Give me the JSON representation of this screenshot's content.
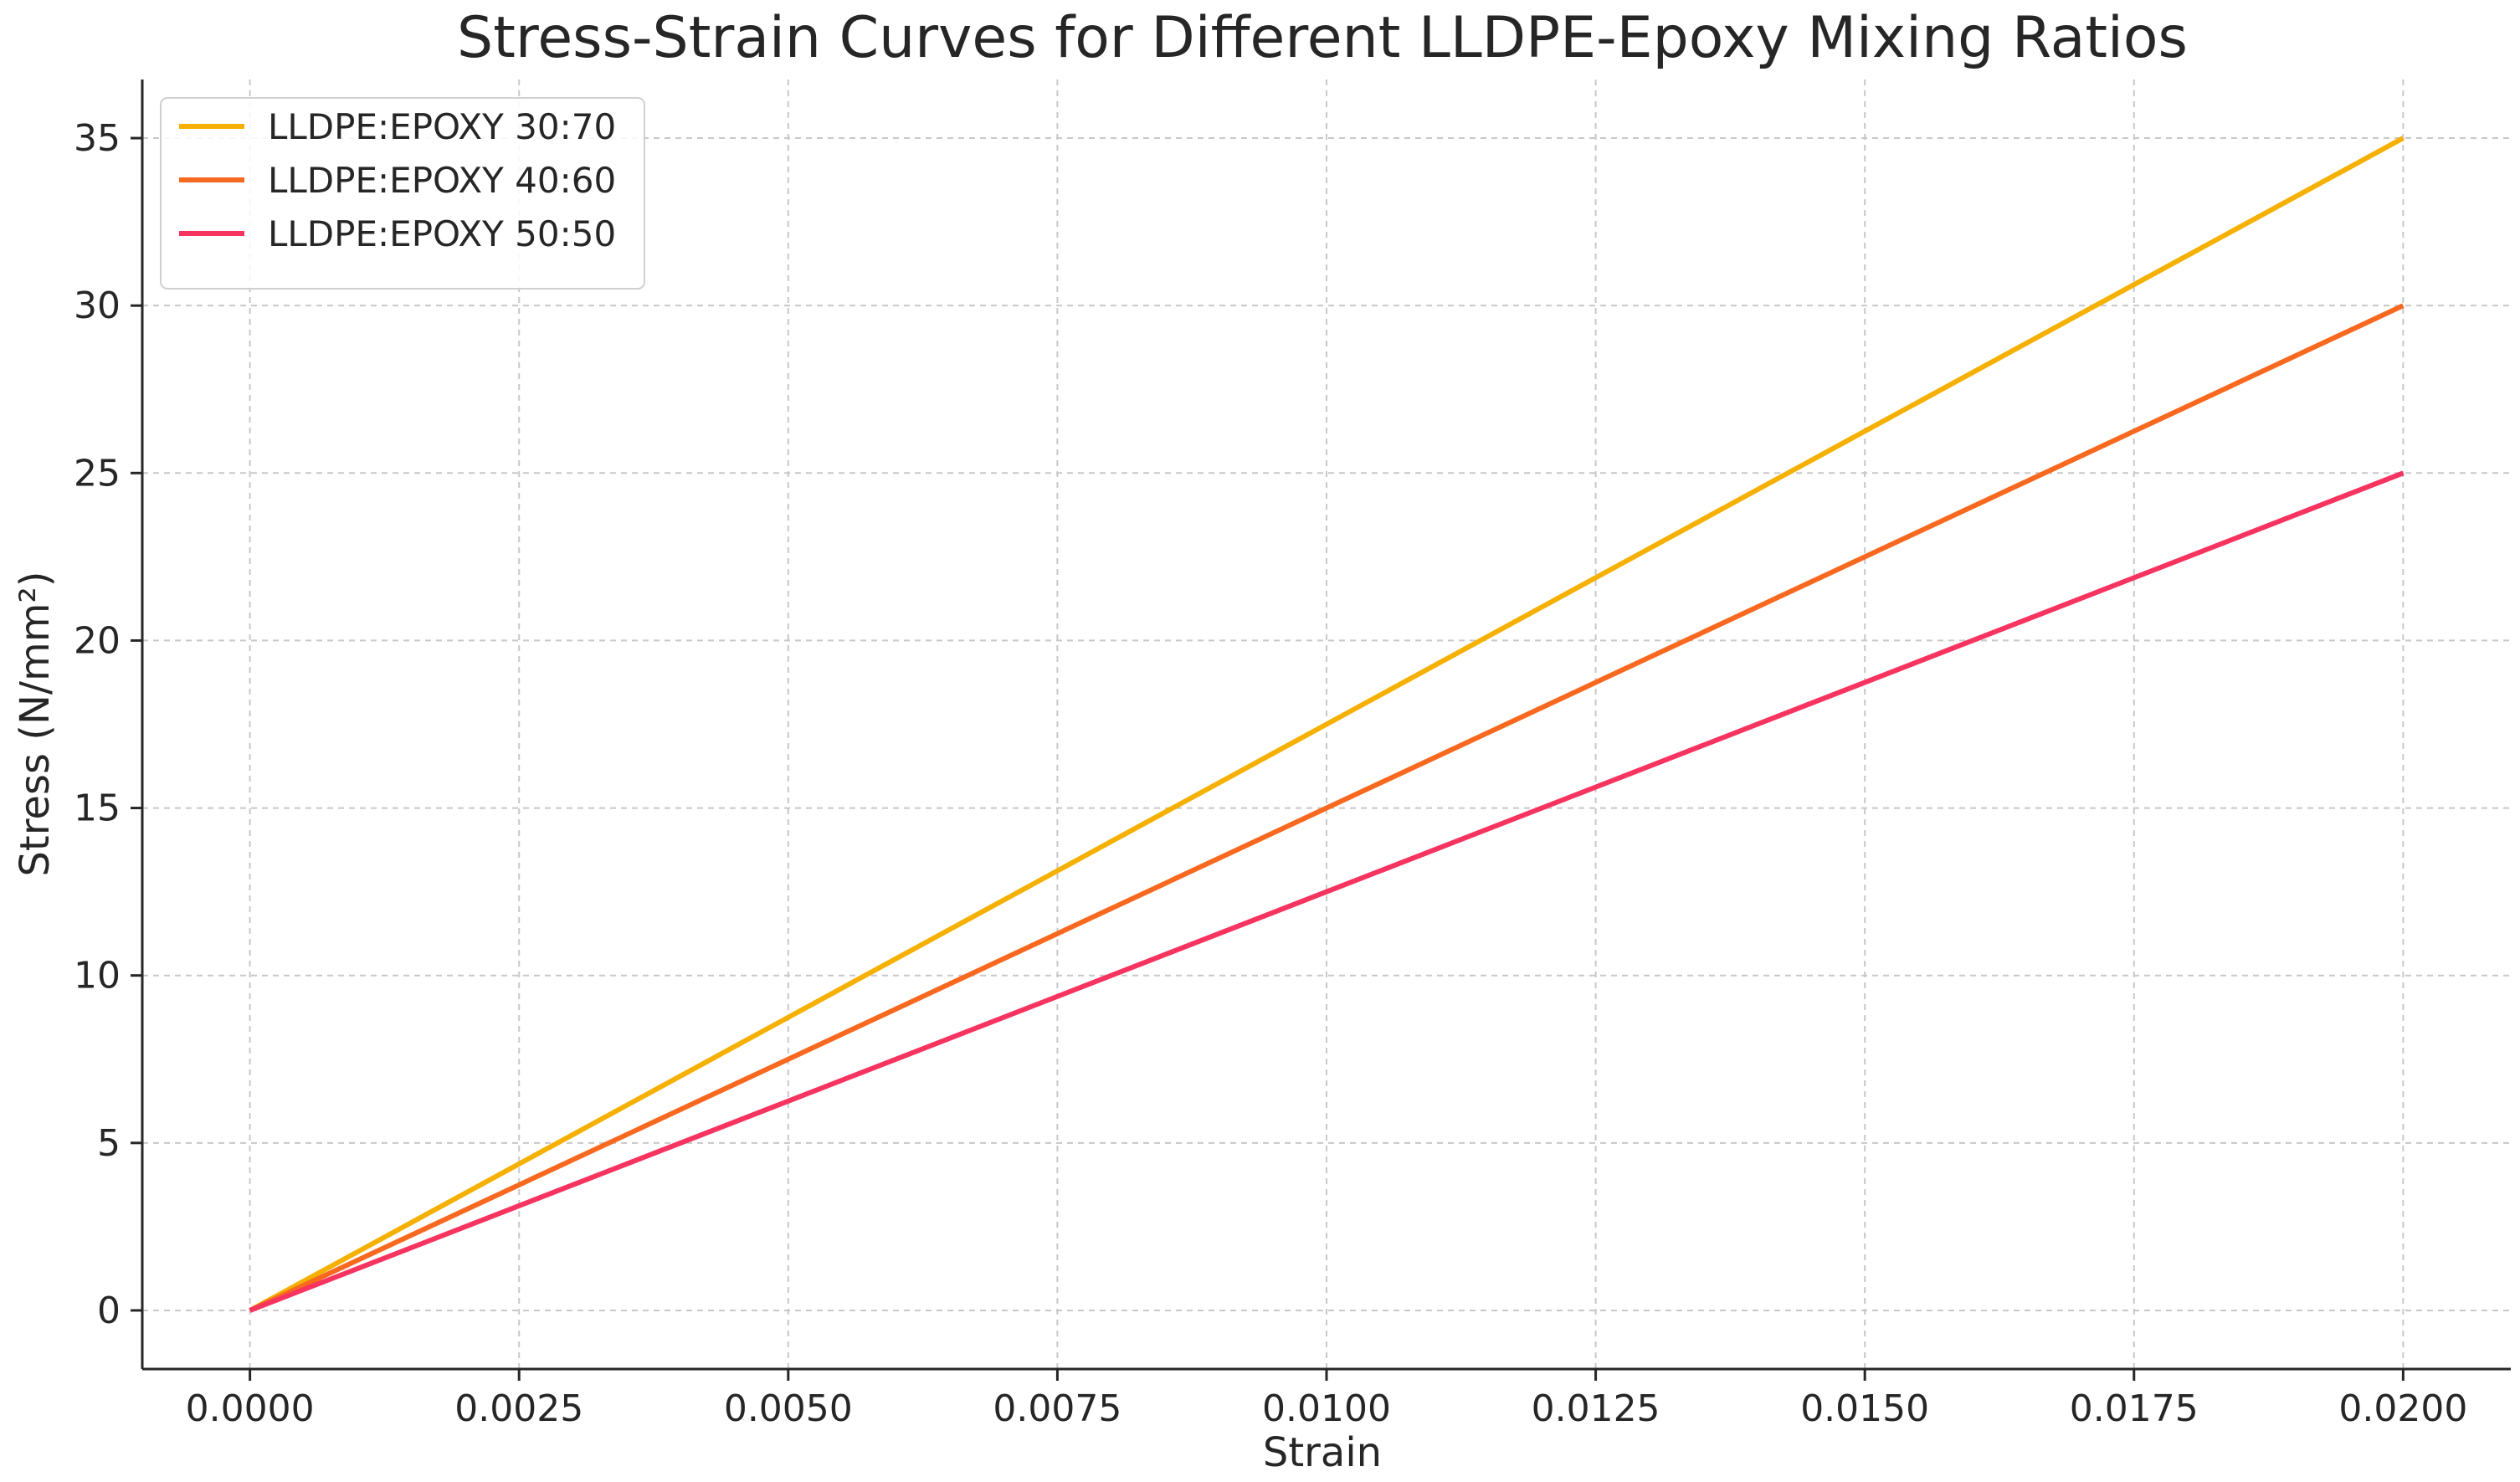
{
  "chart_data": {
    "type": "line",
    "title": "Stress-Strain Curves for Different LLDPE-Epoxy Mixing Ratios",
    "xlabel": "Strain",
    "ylabel": "Stress (N/mm²)",
    "xlim": [
      -0.001,
      0.021
    ],
    "ylim": [
      -1.75,
      36.75
    ],
    "xticks": [
      0.0,
      0.0025,
      0.005,
      0.0075,
      0.01,
      0.0125,
      0.015,
      0.0175,
      0.02
    ],
    "xtick_labels": [
      "0.0000",
      "0.0025",
      "0.0050",
      "0.0075",
      "0.0100",
      "0.0125",
      "0.0150",
      "0.0175",
      "0.0200"
    ],
    "yticks": [
      0,
      5,
      10,
      15,
      20,
      25,
      30,
      35
    ],
    "ytick_labels": [
      "0",
      "5",
      "10",
      "15",
      "20",
      "25",
      "30",
      "35"
    ],
    "grid": true,
    "legend_position": "top-left",
    "series": [
      {
        "name": "LLDPE:EPOXY 30:70",
        "color": "#F5B000",
        "x": [
          0.0,
          0.02
        ],
        "y": [
          0,
          35
        ]
      },
      {
        "name": "LLDPE:EPOXY 40:60",
        "color": "#F8691F",
        "x": [
          0.0,
          0.02
        ],
        "y": [
          0,
          30
        ]
      },
      {
        "name": "LLDPE:EPOXY 50:50",
        "color": "#F73360",
        "x": [
          0.0,
          0.02
        ],
        "y": [
          0,
          25
        ]
      }
    ]
  }
}
